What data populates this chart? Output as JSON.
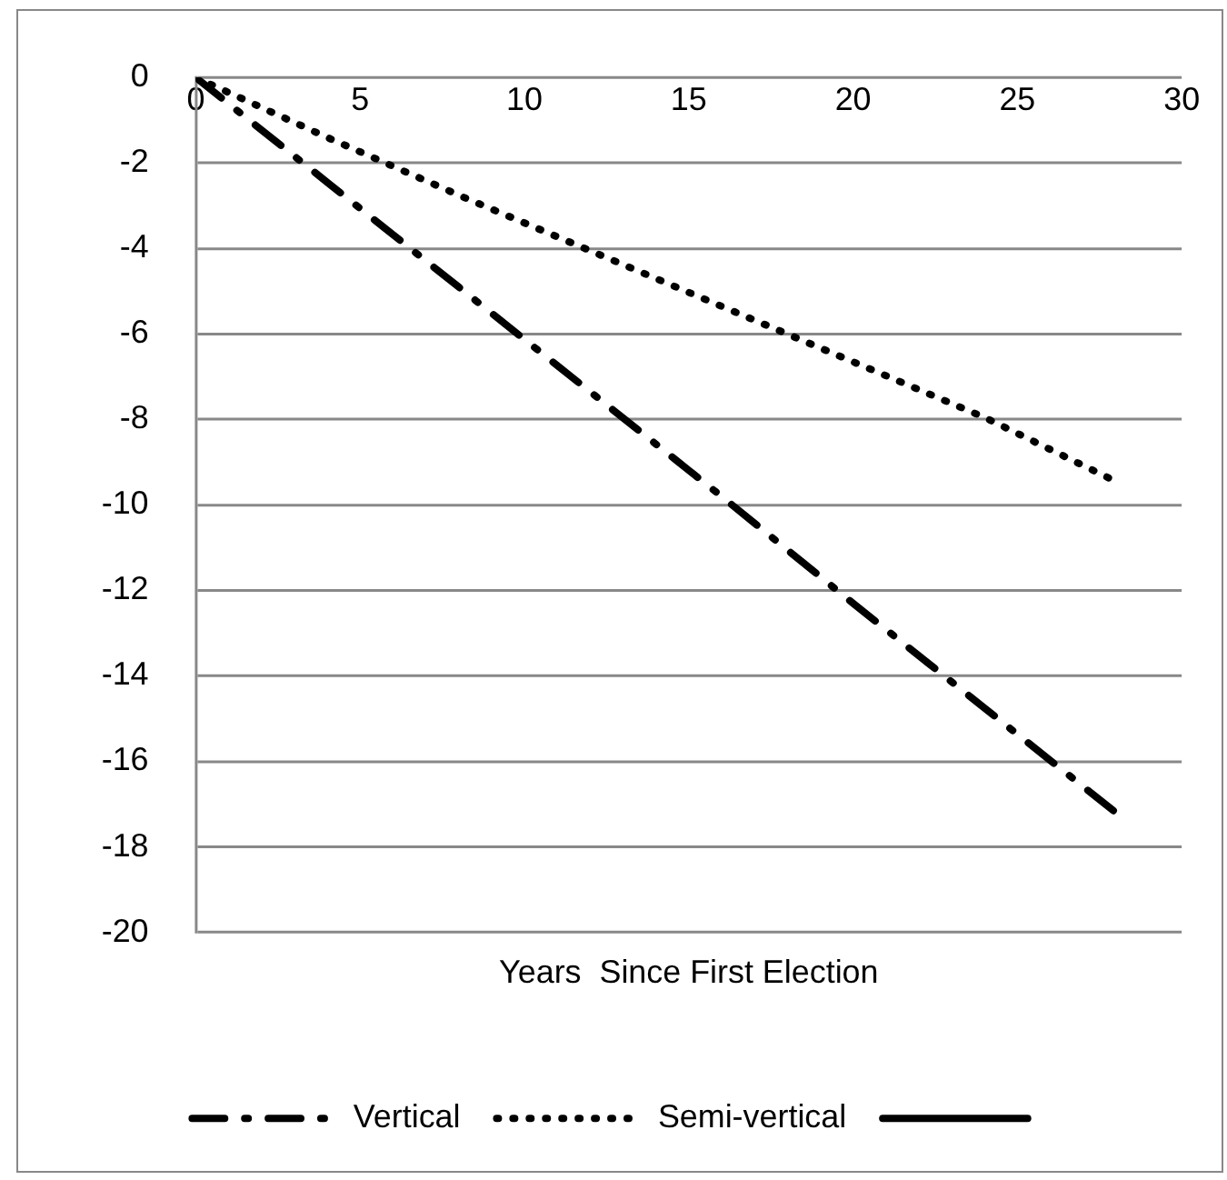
{
  "chart_data": {
    "type": "line",
    "xlabel": "Years  Since First Election",
    "x": [
      0,
      4,
      8,
      12,
      16,
      20,
      24,
      28
    ],
    "series": [
      {
        "name": "Vertical",
        "color": "#000000",
        "line_style": "dashed",
        "values": [
          0,
          -2.45,
          -4.9,
          -7.35,
          -9.8,
          -12.3,
          -14.75,
          -17.2
        ]
      },
      {
        "name": "Semi-vertical",
        "color": "#000000",
        "line_style": "dotted",
        "values": [
          0,
          -1.4,
          -2.75,
          -4.05,
          -5.35,
          -6.65,
          -7.95,
          -9.45
        ]
      },
      {
        "color": "#000000",
        "line_style": "solid",
        "values": [
          null,
          null,
          null,
          null,
          null,
          null,
          null,
          null
        ]
      }
    ],
    "xlim": [
      0,
      30
    ],
    "xticks": [
      0,
      5,
      10,
      15,
      20,
      25,
      30
    ],
    "ylim": [
      -20,
      0
    ],
    "yticks": [
      0,
      -2,
      -4,
      -6,
      -8,
      -10,
      -12,
      -14,
      -16,
      -18,
      -20
    ],
    "grid": "y",
    "legend": "bottom",
    "marker": "none"
  }
}
